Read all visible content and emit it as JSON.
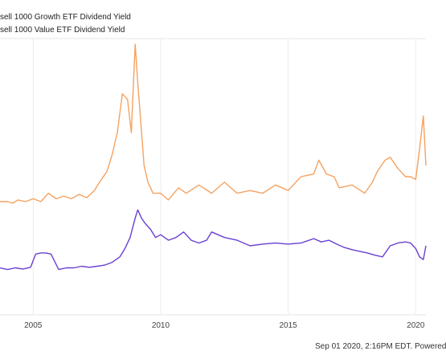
{
  "chart_data": {
    "type": "line",
    "title": "",
    "xlabel": "",
    "ylabel": "",
    "x_ticks": [
      "2005",
      "2010",
      "2015",
      "2020"
    ],
    "xlim": [
      2003.7,
      2020.4
    ],
    "ylim": [
      0,
      5
    ],
    "grid": true,
    "legend_position": "top-left",
    "series": [
      {
        "name": "sell 1000 Growth ETF Dividend Yield",
        "color": "#f4a261",
        "x": [
          2003.7,
          2004.0,
          2004.2,
          2004.4,
          2004.7,
          2005.0,
          2005.3,
          2005.6,
          2005.9,
          2006.2,
          2006.5,
          2006.8,
          2007.1,
          2007.4,
          2007.6,
          2007.9,
          2008.1,
          2008.3,
          2008.5,
          2008.7,
          2008.85,
          2009.0,
          2009.1,
          2009.2,
          2009.35,
          2009.5,
          2009.7,
          2010.0,
          2010.3,
          2010.7,
          2011.0,
          2011.5,
          2012.0,
          2012.5,
          2013.0,
          2013.5,
          2014.0,
          2014.5,
          2015.0,
          2015.5,
          2016.0,
          2016.2,
          2016.5,
          2016.8,
          2017.0,
          2017.5,
          2018.0,
          2018.3,
          2018.5,
          2018.8,
          2019.0,
          2019.3,
          2019.6,
          2019.8,
          2020.0,
          2020.15,
          2020.3,
          2020.4
        ],
        "values": [
          2.05,
          2.05,
          2.02,
          2.08,
          2.05,
          2.1,
          2.05,
          2.2,
          2.1,
          2.15,
          2.1,
          2.18,
          2.12,
          2.25,
          2.4,
          2.6,
          2.9,
          3.3,
          4.0,
          3.9,
          3.3,
          4.9,
          4.2,
          3.6,
          2.7,
          2.4,
          2.2,
          2.2,
          2.08,
          2.3,
          2.2,
          2.35,
          2.2,
          2.4,
          2.2,
          2.25,
          2.2,
          2.35,
          2.25,
          2.5,
          2.55,
          2.8,
          2.55,
          2.5,
          2.3,
          2.35,
          2.2,
          2.4,
          2.6,
          2.8,
          2.85,
          2.65,
          2.5,
          2.5,
          2.45,
          3.0,
          3.6,
          2.7
        ]
      },
      {
        "name": "sell 1000 Value ETF Dividend Yield",
        "color": "#6a3fd2",
        "x": [
          2003.7,
          2004.0,
          2004.3,
          2004.6,
          2004.9,
          2005.1,
          2005.3,
          2005.5,
          2005.7,
          2006.0,
          2006.3,
          2006.6,
          2006.9,
          2007.2,
          2007.5,
          2007.8,
          2008.1,
          2008.4,
          2008.6,
          2008.8,
          2009.0,
          2009.1,
          2009.25,
          2009.4,
          2009.6,
          2009.8,
          2010.0,
          2010.3,
          2010.6,
          2010.9,
          2011.2,
          2011.5,
          2011.8,
          2012.0,
          2012.5,
          2013.0,
          2013.5,
          2014.0,
          2014.5,
          2015.0,
          2015.5,
          2016.0,
          2016.3,
          2016.6,
          2016.9,
          2017.2,
          2017.5,
          2017.8,
          2018.1,
          2018.4,
          2018.7,
          2019.0,
          2019.3,
          2019.6,
          2019.8,
          2020.0,
          2020.15,
          2020.3,
          2020.4
        ],
        "values": [
          0.85,
          0.82,
          0.85,
          0.83,
          0.86,
          1.1,
          1.12,
          1.12,
          1.1,
          0.82,
          0.85,
          0.85,
          0.88,
          0.86,
          0.88,
          0.9,
          0.95,
          1.05,
          1.2,
          1.4,
          1.75,
          1.9,
          1.75,
          1.65,
          1.55,
          1.4,
          1.45,
          1.35,
          1.4,
          1.5,
          1.35,
          1.3,
          1.35,
          1.5,
          1.4,
          1.35,
          1.25,
          1.28,
          1.3,
          1.28,
          1.3,
          1.38,
          1.32,
          1.35,
          1.28,
          1.22,
          1.18,
          1.15,
          1.12,
          1.08,
          1.05,
          1.25,
          1.3,
          1.32,
          1.3,
          1.2,
          1.05,
          1.0,
          1.25
        ]
      }
    ]
  },
  "footer_text": "Sep 01 2020, 2:16PM EDT.  Powered"
}
